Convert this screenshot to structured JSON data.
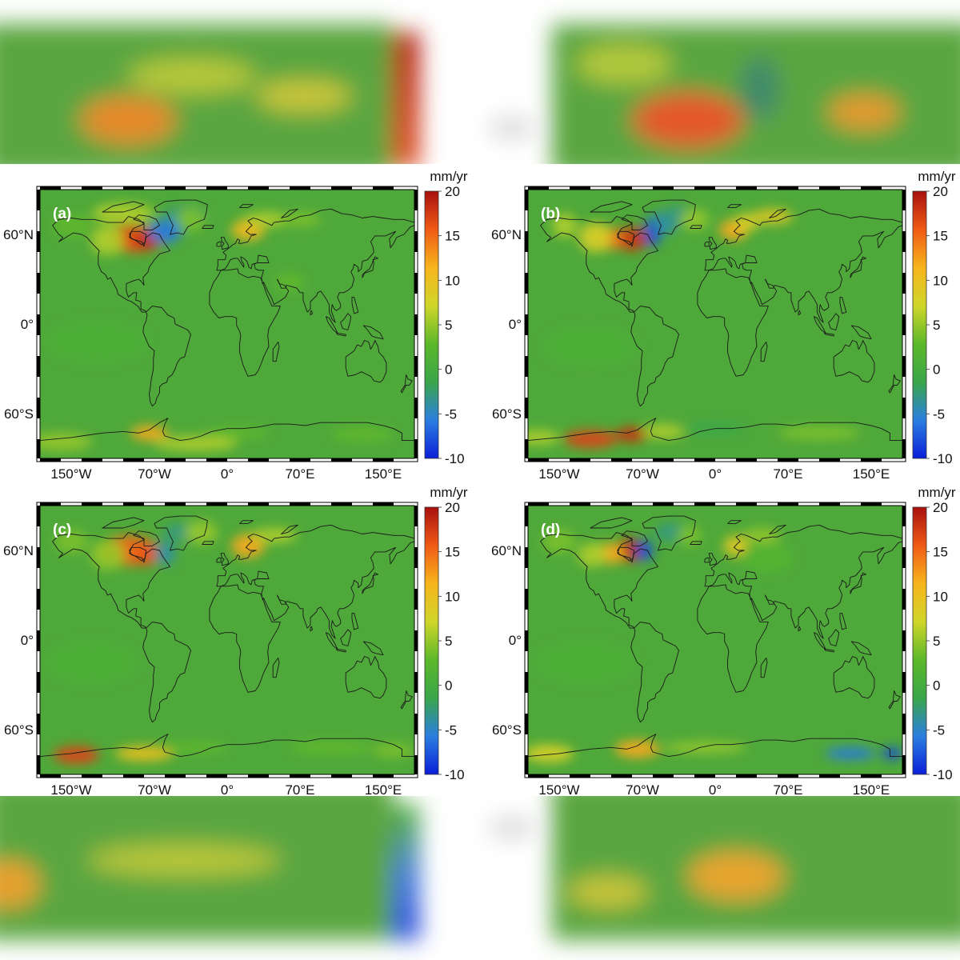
{
  "figure": {
    "unit": "mm/yr",
    "colorbar_ticks": [
      "20",
      "15",
      "10",
      "5",
      "0",
      "-5",
      "-10"
    ],
    "colorbar_range": [
      -10,
      20
    ],
    "colorbar_stops": [
      "#0b1ed8",
      "#2b7fe0",
      "#3aa64a",
      "#5cb82a",
      "#cfd62a",
      "#f7b51c",
      "#ef5a16",
      "#a8100e"
    ],
    "lat_labels": [
      "60°N",
      "0°",
      "60°S"
    ],
    "lon_labels": [
      "150°W",
      "70°W",
      "0°",
      "70°E",
      "150°E"
    ],
    "colors": {
      "ocean_green": "#4fa83a",
      "coast": "#1a1a1a"
    }
  },
  "panels": [
    {
      "id": "a",
      "tag": "(a)"
    },
    {
      "id": "b",
      "tag": "(b)"
    },
    {
      "id": "c",
      "tag": "(c)"
    },
    {
      "id": "d",
      "tag": "(d)"
    }
  ]
}
